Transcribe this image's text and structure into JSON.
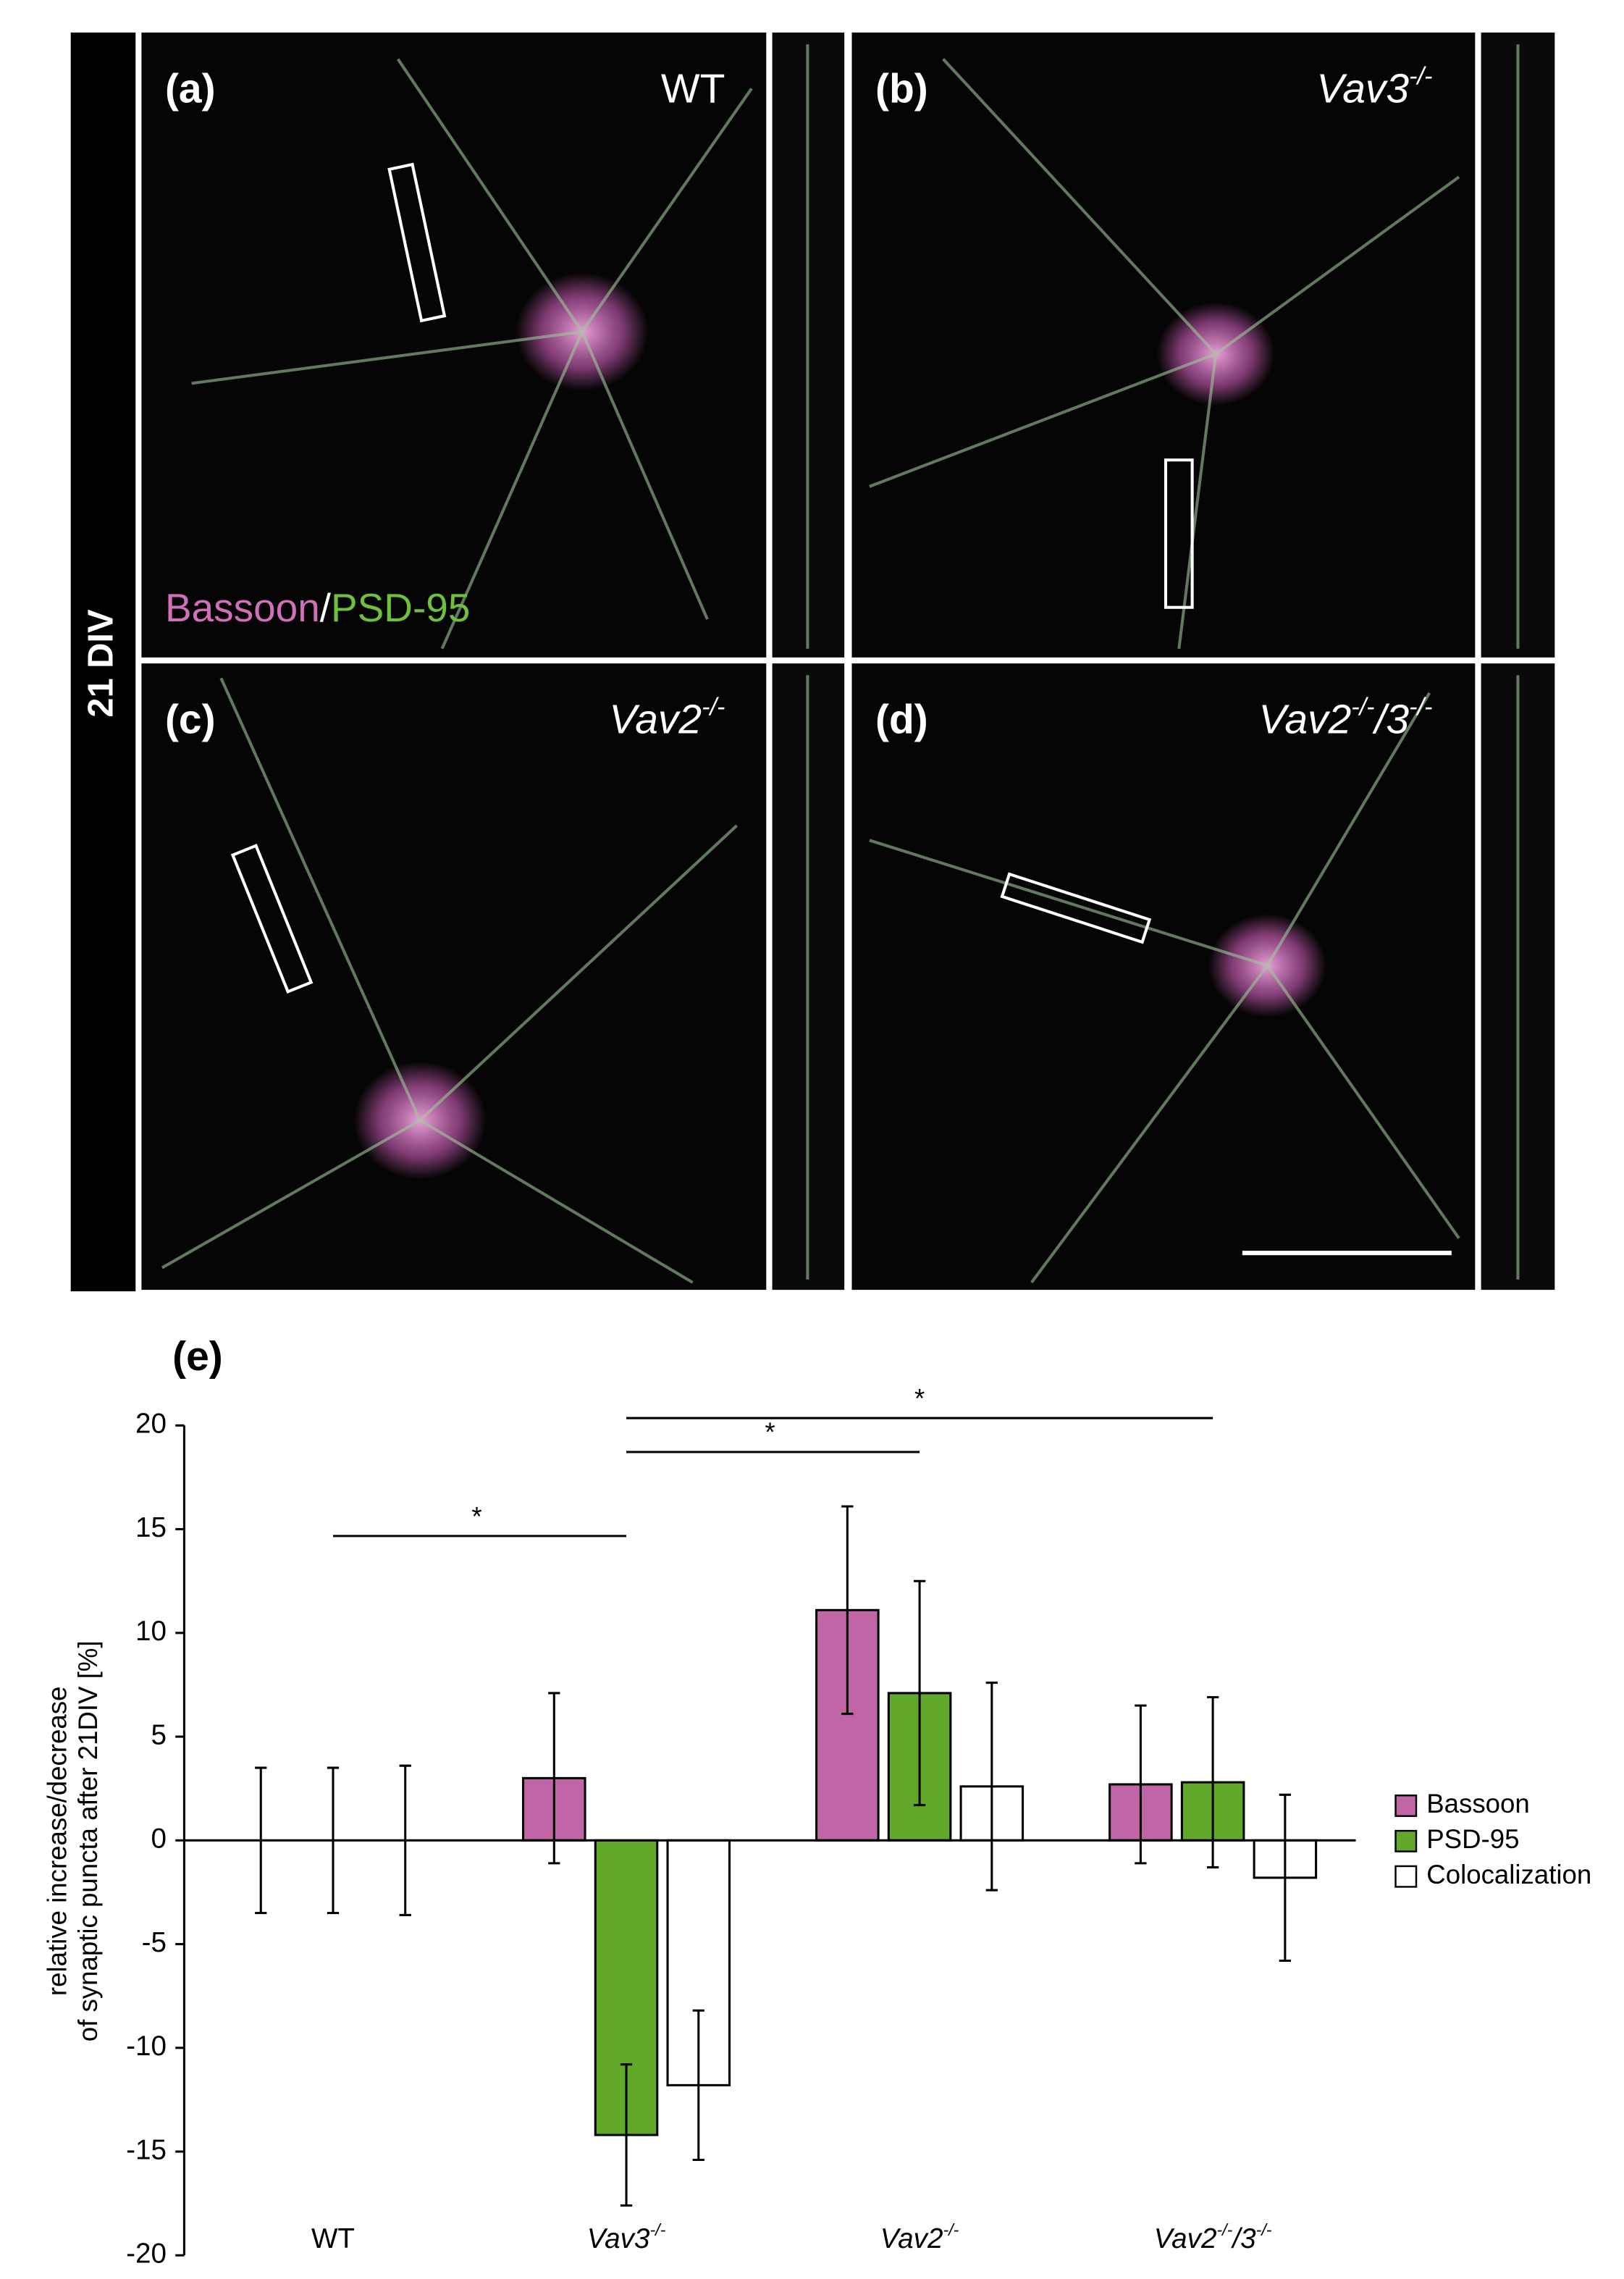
{
  "panels": {
    "side_label": "21 DIV",
    "a": {
      "label": "(a)",
      "genotype": "WT",
      "stain_1": "Bassoon",
      "separator": "/",
      "stain_2": "PSD-95"
    },
    "b": {
      "label": "(b)",
      "genotype": "Vav3-/-"
    },
    "c": {
      "label": "(c)",
      "genotype": "Vav2-/-"
    },
    "d": {
      "label": "(d)",
      "genotype": "Vav2-/-/3-/-"
    }
  },
  "chart_data": {
    "type": "bar",
    "title": "(e)",
    "ylabel": [
      "relative increase/decrease",
      "of synaptic puncta after 21DIV [%]"
    ],
    "categories": [
      "WT",
      "Vav3-/-",
      "Vav2-/-",
      "Vav2-/-/3-/-"
    ],
    "series": [
      {
        "name": "Bassoon",
        "color": "#c066a6",
        "values": [
          0,
          3.0,
          11.1,
          2.7
        ],
        "errors": [
          3.5,
          4.1,
          5.0,
          3.8
        ]
      },
      {
        "name": "PSD-95",
        "color": "#62a82a",
        "values": [
          0,
          -14.2,
          7.1,
          2.8
        ],
        "errors": [
          3.5,
          3.4,
          5.4,
          4.1
        ]
      },
      {
        "name": "Colocalization",
        "color": "#ffffff",
        "values": [
          0,
          -11.8,
          2.6,
          -1.8
        ],
        "errors": [
          3.6,
          3.6,
          5.0,
          4.0
        ]
      }
    ],
    "ylim": [
      -20,
      20
    ],
    "yticks": [
      -20,
      -15,
      -10,
      -5,
      0,
      5,
      10,
      15,
      20
    ],
    "annotations": [
      "*",
      "*",
      "*"
    ],
    "legend": "right"
  }
}
